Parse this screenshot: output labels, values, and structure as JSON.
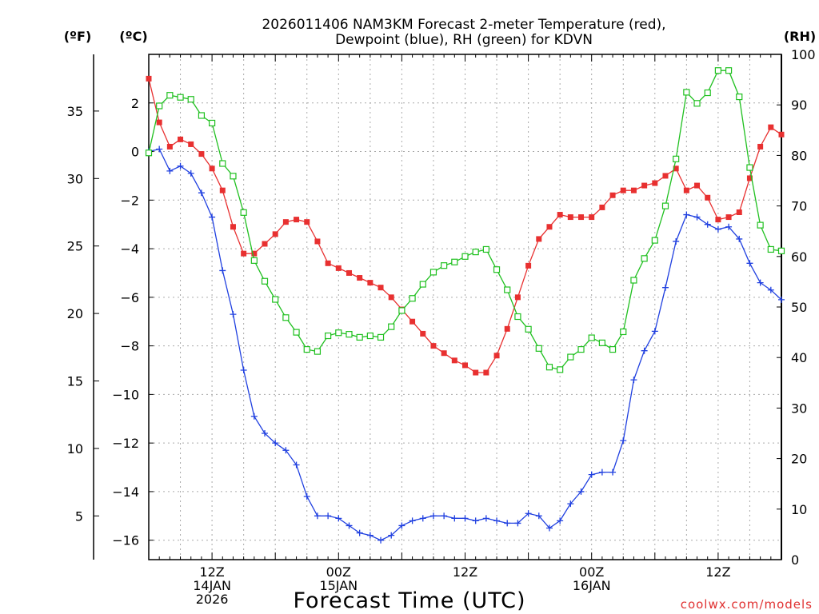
{
  "chart_data": {
    "type": "line",
    "title_line1": "2026011406 NAM3KM Forecast 2-meter Temperature (red),",
    "title_line2": "Dewpoint (blue), RH (green) for KDVN",
    "xlabel": "Forecast Time (UTC)",
    "credit": "coolwx.com/models",
    "units": {
      "fahrenheit": "(ºF)",
      "celsius": "(ºC)",
      "rh": "(RH)"
    },
    "x_hours_start": 6,
    "x_hours_end": 66,
    "x_ticks": [
      {
        "hour": 12,
        "lines": [
          "12Z",
          "14JAN",
          "2026"
        ]
      },
      {
        "hour": 24,
        "lines": [
          "00Z",
          "15JAN"
        ]
      },
      {
        "hour": 36,
        "lines": [
          "12Z"
        ]
      },
      {
        "hour": 48,
        "lines": [
          "00Z",
          "16JAN"
        ]
      },
      {
        "hour": 60,
        "lines": [
          "12Z"
        ]
      }
    ],
    "celsius_axis": {
      "range": [
        -16.8,
        4.0
      ],
      "ticks": [
        -16,
        -14,
        -12,
        -10,
        -8,
        -6,
        -4,
        -2,
        0,
        2
      ]
    },
    "fahrenheit_axis": {
      "ticks": [
        5,
        10,
        15,
        20,
        25,
        30,
        35
      ]
    },
    "rh_axis": {
      "range": [
        0,
        100
      ],
      "ticks": [
        0,
        10,
        20,
        30,
        40,
        50,
        60,
        70,
        80,
        90,
        100
      ]
    },
    "series": [
      {
        "name": "2-meter Temperature",
        "unit": "C",
        "color": "#e83030",
        "marker": "filled-square",
        "hours": [
          6,
          7,
          8,
          9,
          10,
          11,
          12,
          13,
          14,
          15,
          16,
          17,
          18,
          19,
          20,
          21,
          22,
          23,
          24,
          25,
          26,
          27,
          28,
          29,
          30,
          31,
          32,
          33,
          34,
          35,
          36,
          37,
          38,
          39,
          40,
          41,
          42,
          43,
          44,
          45,
          46,
          47,
          48,
          49,
          50,
          51,
          52,
          53,
          54,
          55,
          56,
          57,
          58,
          59,
          60,
          61,
          62,
          63,
          64,
          65,
          66
        ],
        "values": [
          3.0,
          1.2,
          0.2,
          0.5,
          0.3,
          -0.1,
          -0.7,
          -1.6,
          -3.1,
          -4.2,
          -4.2,
          -3.8,
          -3.4,
          -2.9,
          -2.8,
          -2.9,
          -3.7,
          -4.6,
          -4.8,
          -5.0,
          -5.2,
          -5.4,
          -5.6,
          -6.0,
          -6.5,
          -7.0,
          -7.5,
          -8.0,
          -8.3,
          -8.6,
          -8.8,
          -9.1,
          -9.1,
          -8.4,
          -7.3,
          -6.0,
          -4.7,
          -3.6,
          -3.1,
          -2.6,
          -2.7,
          -2.7,
          -2.7,
          -2.3,
          -1.8,
          -1.6,
          -1.6,
          -1.4,
          -1.3,
          -1.0,
          -0.7,
          -1.6,
          -1.4,
          -1.9,
          -2.8,
          -2.7,
          -2.5,
          -1.1,
          0.2,
          1.0,
          0.7
        ]
      },
      {
        "name": "Dewpoint",
        "unit": "C",
        "color": "#2040e0",
        "marker": "plus",
        "hours": [
          6,
          7,
          8,
          9,
          10,
          11,
          12,
          13,
          14,
          15,
          16,
          17,
          18,
          19,
          20,
          21,
          22,
          23,
          24,
          25,
          26,
          27,
          28,
          29,
          30,
          31,
          32,
          33,
          34,
          35,
          36,
          37,
          38,
          39,
          40,
          41,
          42,
          43,
          44,
          45,
          46,
          47,
          48,
          49,
          50,
          51,
          52,
          53,
          54,
          55,
          56,
          57,
          58,
          59,
          60,
          61,
          62,
          63,
          64,
          65,
          66
        ],
        "values": [
          0.0,
          0.1,
          -0.8,
          -0.6,
          -0.9,
          -1.7,
          -2.7,
          -4.9,
          -6.7,
          -9.0,
          -10.9,
          -11.6,
          -12.0,
          -12.3,
          -12.9,
          -14.2,
          -15.0,
          -15.0,
          -15.1,
          -15.4,
          -15.7,
          -15.8,
          -16.0,
          -15.8,
          -15.4,
          -15.2,
          -15.1,
          -15.0,
          -15.0,
          -15.1,
          -15.1,
          -15.2,
          -15.1,
          -15.2,
          -15.3,
          -15.3,
          -14.9,
          -15.0,
          -15.5,
          -15.2,
          -14.5,
          -14.0,
          -13.3,
          -13.2,
          -13.2,
          -11.9,
          -9.4,
          -8.2,
          -7.4,
          -5.6,
          -3.7,
          -2.6,
          -2.7,
          -3.0,
          -3.2,
          -3.1,
          -3.6,
          -4.6,
          -5.4,
          -5.7,
          -6.1
        ]
      },
      {
        "name": "RH",
        "unit": "%",
        "color": "#20c020",
        "marker": "open-square",
        "hours": [
          6,
          7,
          8,
          9,
          10,
          11,
          12,
          13,
          14,
          15,
          16,
          17,
          18,
          19,
          20,
          21,
          22,
          23,
          24,
          25,
          26,
          27,
          28,
          29,
          30,
          31,
          32,
          33,
          34,
          35,
          36,
          37,
          38,
          39,
          40,
          41,
          42,
          43,
          44,
          45,
          46,
          47,
          48,
          49,
          50,
          51,
          52,
          53,
          54,
          55,
          56,
          57,
          58,
          59,
          60,
          61,
          62,
          63,
          64,
          65,
          66
        ],
        "values": [
          80.5,
          89.8,
          91.9,
          91.5,
          91.1,
          87.9,
          86.4,
          78.4,
          75.9,
          68.7,
          59.2,
          55.1,
          51.5,
          47.9,
          45.0,
          41.6,
          41.2,
          44.3,
          44.9,
          44.6,
          44.0,
          44.3,
          44.0,
          46.1,
          49.3,
          51.7,
          54.5,
          56.9,
          58.2,
          58.9,
          60.0,
          60.9,
          61.4,
          57.4,
          53.4,
          48.1,
          45.6,
          41.8,
          38.1,
          37.6,
          40.1,
          41.6,
          43.9,
          42.9,
          41.6,
          45.1,
          55.3,
          59.6,
          63.2,
          70.0,
          79.3,
          92.5,
          90.3,
          92.4,
          96.8,
          96.8,
          91.6,
          77.6,
          66.2,
          61.4,
          61.1
        ]
      }
    ]
  }
}
